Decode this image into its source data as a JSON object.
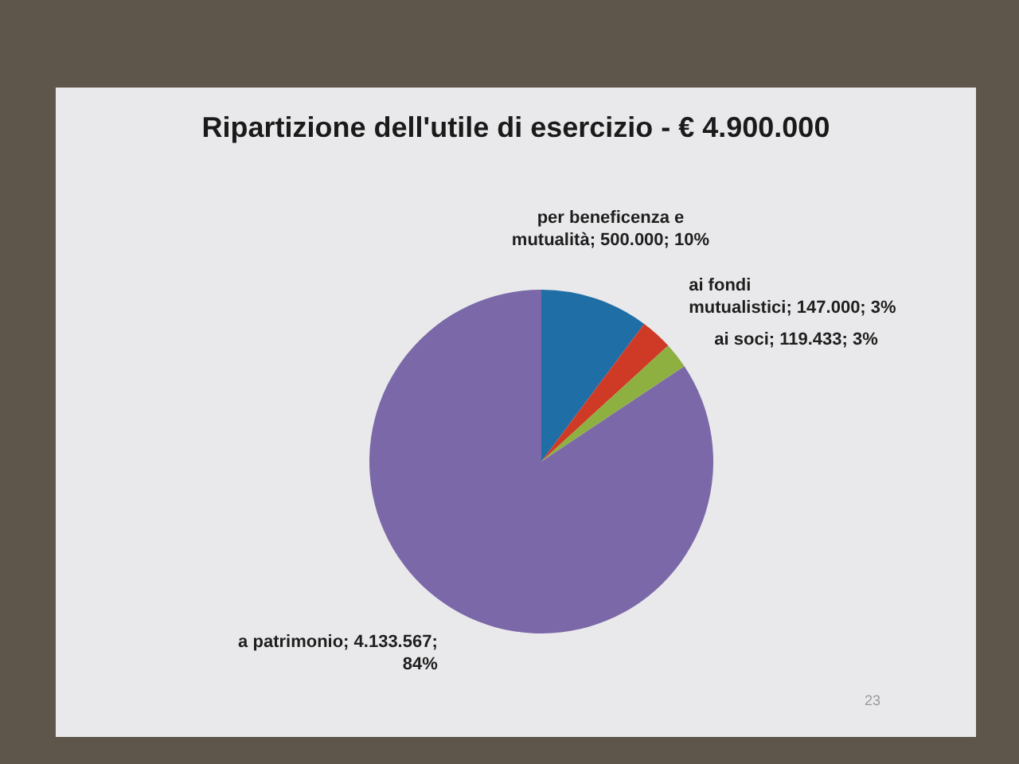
{
  "chart_data": {
    "type": "pie",
    "title": "Ripartizione dell'utile di esercizio - € 4.900.000",
    "categories": [
      "per beneficenza e mutualità",
      "ai fondi mutualistici",
      "ai soci",
      "a patrimonio"
    ],
    "values": [
      500000,
      147000,
      119433,
      4133567
    ],
    "value_labels": [
      "500.000; 10%",
      "147.000; 3%",
      "119.433; 3%",
      "4.133.567; 84%"
    ],
    "colors": [
      "#1f6ea6",
      "#cf3a26",
      "#8db040",
      "#7b68a8"
    ],
    "annotations": [
      "23"
    ]
  }
}
